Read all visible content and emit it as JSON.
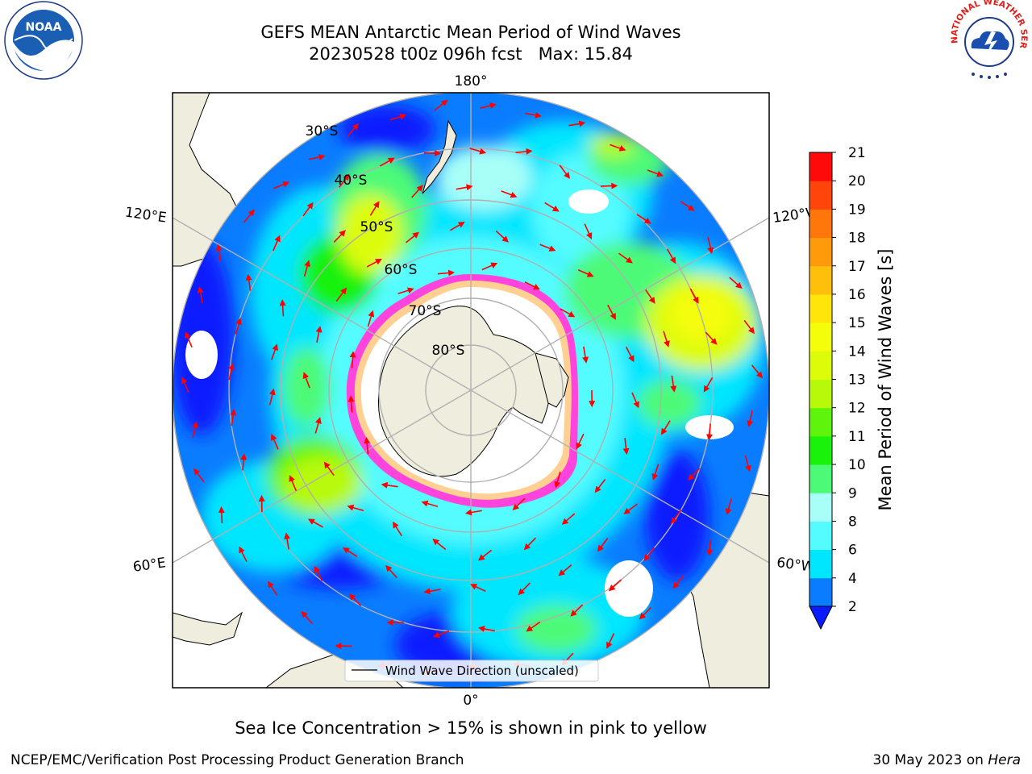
{
  "header": {
    "title_line1": "GEFS MEAN Antarctic Mean Period of Wind Waves",
    "title_line2": "20230528 t00z 096h fcst   Max: 15.84"
  },
  "logos": {
    "left": "NOAA",
    "right": "NATIONAL WEATHER SERVICE"
  },
  "map": {
    "longitude_labels": {
      "top": "180°",
      "bottom": "0°",
      "left_upper": "120°E",
      "left_lower": "60°E",
      "right_upper": "120°W",
      "right_lower": "60°W"
    },
    "latitude_labels": [
      "30°S",
      "40°S",
      "50°S",
      "60°S",
      "70°S",
      "80°S"
    ],
    "legend": "Wind Wave Direction (unscaled)",
    "colors": {
      "land": "#efedde",
      "grid": "#b0b0b0",
      "arrow": "#ff0000",
      "sea_ice": "#ff44dd"
    }
  },
  "colorbar": {
    "label": "Mean Period of Wind Waves [s]",
    "ticks": [
      "2",
      "4",
      "6",
      "8",
      "9",
      "10",
      "11",
      "12",
      "13",
      "14",
      "15",
      "16",
      "17",
      "18",
      "19",
      "20",
      "21"
    ],
    "colors": [
      "#0a7cff",
      "#00e6ff",
      "#55fcff",
      "#a8fff8",
      "#4dfa77",
      "#19f20a",
      "#5ef40b",
      "#b8f90a",
      "#dcfc0a",
      "#f4fd0a",
      "#ffe50a",
      "#ffbf0a",
      "#ff9a0a",
      "#ff760a",
      "#ff450a",
      "#ff0a0a"
    ],
    "under_color": "#0a1cff"
  },
  "notes": {
    "sea_ice": "Sea Ice Concentration > 15% is shown in pink to yellow"
  },
  "footer": {
    "left": "NCEP/EMC/Verification Post Processing Product Generation Branch",
    "date": "30 May 2023 on ",
    "machine": "Hera"
  }
}
